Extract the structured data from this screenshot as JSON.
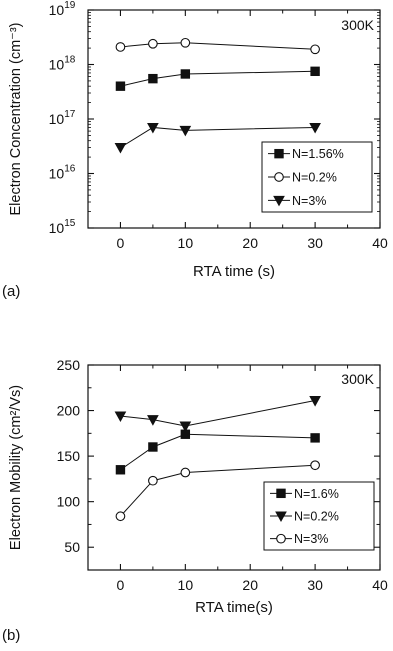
{
  "chart_data": [
    {
      "panel_label": "(a)",
      "type": "scatter",
      "lines": true,
      "yscale": "log",
      "annotation": "300K",
      "xlabel": "RTA time (s)",
      "ylabel": "Electron Concentration (cm⁻³)",
      "xlim": [
        -5,
        40
      ],
      "ylim": [
        1000000000000000.0,
        1e+19
      ],
      "xticks": [
        0,
        10,
        20,
        30,
        40
      ],
      "xtick_labels": [
        "0",
        "10",
        "20",
        "30",
        "40"
      ],
      "yticks": [
        1000000000000000.0,
        1e+16,
        1e+17,
        1e+18,
        1e+19
      ],
      "ytick_labels": [
        {
          "base": "10",
          "exp": "15"
        },
        {
          "base": "10",
          "exp": "16"
        },
        {
          "base": "10",
          "exp": "17"
        },
        {
          "base": "10",
          "exp": "18"
        },
        {
          "base": "10",
          "exp": "19"
        }
      ],
      "legend_position": "lower-right",
      "grid": false,
      "series": [
        {
          "name": "N=1.56%",
          "marker": "square-filled",
          "x": [
            0,
            5,
            10,
            30
          ],
          "y": [
            4e+17,
            5.5e+17,
            6.7e+17,
            7.5e+17
          ]
        },
        {
          "name": "N=0.2%",
          "marker": "circle-open",
          "x": [
            0,
            5,
            10,
            30
          ],
          "y": [
            2.1e+18,
            2.4e+18,
            2.5e+18,
            1.9e+18
          ]
        },
        {
          "name": "N=3%",
          "marker": "triangle-down-filled",
          "x": [
            0,
            5,
            10,
            30
          ],
          "y": [
            3e+16,
            7e+16,
            6.2e+16,
            7e+16
          ]
        }
      ]
    },
    {
      "panel_label": "(b)",
      "type": "scatter",
      "lines": true,
      "yscale": "linear",
      "annotation": "300K",
      "xlabel": "RTA time(s)",
      "ylabel": "Electron Mobility (cm²/Vs)",
      "xlim": [
        -5,
        40
      ],
      "ylim": [
        25,
        250
      ],
      "xticks": [
        0,
        10,
        20,
        30,
        40
      ],
      "xtick_labels": [
        "0",
        "10",
        "20",
        "30",
        "40"
      ],
      "yticks": [
        50,
        100,
        150,
        200,
        250
      ],
      "ytick_labels": [
        "50",
        "100",
        "150",
        "200",
        "250"
      ],
      "legend_position": "lower-right",
      "grid": false,
      "series": [
        {
          "name": "N=1.6%",
          "marker": "square-filled",
          "x": [
            0,
            5,
            10,
            30
          ],
          "y": [
            135,
            160,
            174,
            170
          ]
        },
        {
          "name": "N=0.2%",
          "marker": "triangle-down-filled",
          "x": [
            0,
            5,
            10,
            30
          ],
          "y": [
            194,
            190,
            183,
            211
          ]
        },
        {
          "name": "N=3%",
          "marker": "circle-open",
          "x": [
            0,
            5,
            10,
            30
          ],
          "y": [
            84,
            123,
            132,
            140
          ]
        }
      ]
    }
  ]
}
